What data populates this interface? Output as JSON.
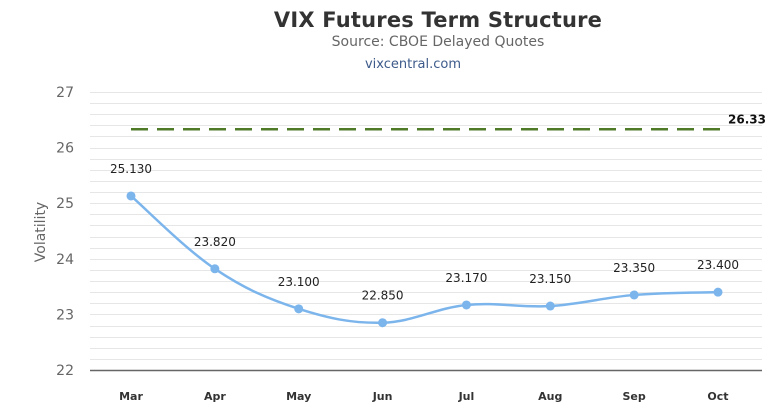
{
  "header": {
    "title": "VIX Futures Term Structure",
    "subtitle": "Source: CBOE Delayed Quotes",
    "credit": "vixcentral.com"
  },
  "colors": {
    "series": "#7cb5ec",
    "reference_line": "#4f7a28",
    "grid": "#e6e6e6",
    "axis": "#666666"
  },
  "chart_data": {
    "type": "line",
    "title": "VIX Futures Term Structure",
    "subtitle": "Source: CBOE Delayed Quotes",
    "xlabel": "",
    "ylabel": "Volatility",
    "ylim": [
      22,
      27
    ],
    "yticks": [
      22,
      23,
      24,
      25,
      26,
      27
    ],
    "minor_grid_step": 0.2,
    "grid": true,
    "legend": "none",
    "categories": [
      "Mar",
      "Apr",
      "May",
      "Jun",
      "Jul",
      "Aug",
      "Sep",
      "Oct"
    ],
    "series": [
      {
        "name": "VIX Futures",
        "values": [
          25.13,
          23.82,
          23.1,
          22.85,
          23.17,
          23.15,
          23.35,
          23.4
        ],
        "labels": [
          "25.130",
          "23.820",
          "23.100",
          "22.850",
          "23.170",
          "23.150",
          "23.350",
          "23.400"
        ],
        "smooth": true
      }
    ],
    "reference_line": {
      "value": 26.33,
      "label": "26.33",
      "style": "dashed"
    }
  }
}
